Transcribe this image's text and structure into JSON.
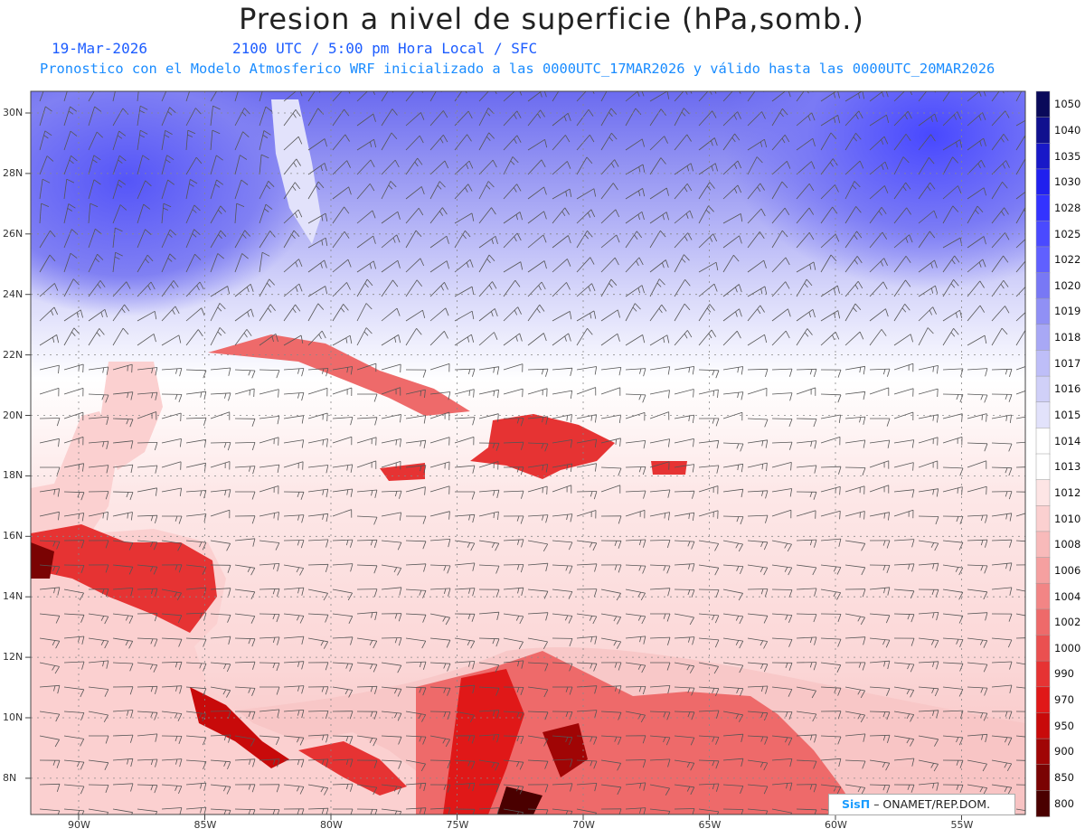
{
  "header": {
    "title": "Presion a nivel de superficie (hPa,somb.)",
    "date": "19-Mar-2026",
    "time": "2100 UTC / 5:00 pm Hora Local / SFC",
    "forecast": "Pronostico con el Modelo Atmosferico WRF inicializado a las 0000UTC_17MAR2026 y válido hasta las  0000UTC_20MAR2026"
  },
  "map": {
    "lat_labels": [
      "30N",
      "28N",
      "26N",
      "24N",
      "22N",
      "20N",
      "18N",
      "16N",
      "14N",
      "12N",
      "10N",
      "8N"
    ],
    "lon_labels": [
      "90W",
      "85W",
      "80W",
      "75W",
      "70W",
      "65W",
      "60W",
      "55W"
    ],
    "colorbar": {
      "levels": [
        "1050",
        "1040",
        "1035",
        "1030",
        "1028",
        "1025",
        "1022",
        "1020",
        "1019",
        "1018",
        "1017",
        "1016",
        "1015",
        "1014",
        "1013",
        "1012",
        "1010",
        "1008",
        "1006",
        "1004",
        "1002",
        "1000",
        "990",
        "970",
        "950",
        "900",
        "850",
        "800"
      ],
      "colors": [
        "#0a0a5a",
        "#10108f",
        "#1818c8",
        "#2020ee",
        "#3333ff",
        "#4a4aff",
        "#6060ff",
        "#7878f5",
        "#9090f5",
        "#a8a8f5",
        "#bebef8",
        "#d0d0f8",
        "#e2e2fb",
        "#ffffff",
        "#ffffff",
        "#fde5e5",
        "#fbd0d0",
        "#f8baba",
        "#f5a0a0",
        "#f28585",
        "#ee6a6a",
        "#ea5050",
        "#e63333",
        "#e01818",
        "#c80a0a",
        "#a00505",
        "#7a0303",
        "#4a0000"
      ]
    },
    "land_color": "#e63333",
    "ocean_color": "#fde5e5"
  },
  "credit": {
    "logo": "SisΠ",
    "org": "– ONAMET/REP.DOM."
  }
}
